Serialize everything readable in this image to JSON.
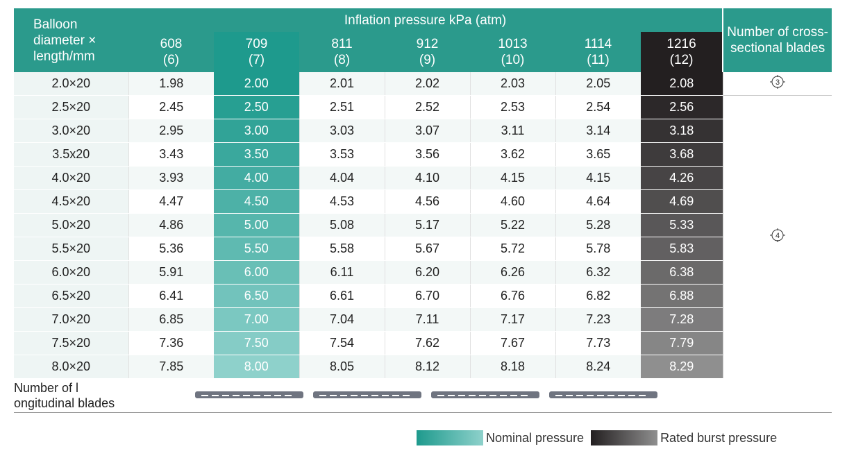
{
  "header": {
    "row_label": "Balloon diameter × length/mm",
    "pressure_title": "Inflation pressure kPa (atm)",
    "pressures": [
      {
        "kpa": "608",
        "atm": "(6)"
      },
      {
        "kpa": "709",
        "atm": "(7)"
      },
      {
        "kpa": "811",
        "atm": "(8)"
      },
      {
        "kpa": "912",
        "atm": "(9)"
      },
      {
        "kpa": "1013",
        "atm": "(10)"
      },
      {
        "kpa": "1114",
        "atm": "(11)"
      },
      {
        "kpa": "1216",
        "atm": "(12)"
      }
    ],
    "blades_label": "Number of cross-sectional blades"
  },
  "rows": [
    {
      "size": "2.0×20",
      "values": [
        "1.98",
        "2.00",
        "2.01",
        "2.02",
        "2.03",
        "2.05",
        "2.08"
      ]
    },
    {
      "size": "2.5×20",
      "values": [
        "2.45",
        "2.50",
        "2.51",
        "2.52",
        "2.53",
        "2.54",
        "2.56"
      ]
    },
    {
      "size": "3.0×20",
      "values": [
        "2.95",
        "3.00",
        "3.03",
        "3.07",
        "3.11",
        "3.14",
        "3.18"
      ]
    },
    {
      "size": "3.5x20",
      "values": [
        "3.43",
        "3.50",
        "3.53",
        "3.56",
        "3.62",
        "3.65",
        "3.68"
      ]
    },
    {
      "size": "4.0×20",
      "values": [
        "3.93",
        "4.00",
        "4.04",
        "4.10",
        "4.15",
        "4.15",
        "4.26"
      ]
    },
    {
      "size": "4.5×20",
      "values": [
        "4.47",
        "4.50",
        "4.53",
        "4.56",
        "4.60",
        "4.64",
        "4.69"
      ]
    },
    {
      "size": "5.0×20",
      "values": [
        "4.86",
        "5.00",
        "5.08",
        "5.17",
        "5.22",
        "5.28",
        "5.33"
      ]
    },
    {
      "size": "5.5×20",
      "values": [
        "5.36",
        "5.50",
        "5.58",
        "5.67",
        "5.72",
        "5.78",
        "5.83"
      ]
    },
    {
      "size": "6.0×20",
      "values": [
        "5.91",
        "6.00",
        "6.11",
        "6.20",
        "6.26",
        "6.32",
        "6.38"
      ]
    },
    {
      "size": "6.5×20",
      "values": [
        "6.41",
        "6.50",
        "6.61",
        "6.70",
        "6.76",
        "6.82",
        "6.88"
      ]
    },
    {
      "size": "7.0×20",
      "values": [
        "6.85",
        "7.00",
        "7.04",
        "7.11",
        "7.17",
        "7.23",
        "7.28"
      ]
    },
    {
      "size": "7.5×20",
      "values": [
        "7.36",
        "7.50",
        "7.54",
        "7.62",
        "7.67",
        "7.73",
        "7.79"
      ]
    },
    {
      "size": "8.0×20",
      "values": [
        "7.85",
        "8.00",
        "8.05",
        "8.12",
        "8.18",
        "8.24",
        "8.29"
      ]
    }
  ],
  "blades": {
    "three": "3",
    "four": "4"
  },
  "longitudinal_label": "Number of l ongitudinal blades",
  "legend": {
    "nominal": "Nominal pressure",
    "burst": "Rated burst pressure"
  },
  "colors": {
    "header": "#2b9a8c",
    "nominal_top": "#1e9a8d",
    "nominal_bottom": "#8ed1cb",
    "burst_top": "#231f20",
    "burst_bottom": "#8f8f8f"
  },
  "icons": {
    "blade_cross": "circle-crosshair-icon",
    "blade_strip": "blade-strip-icon"
  }
}
